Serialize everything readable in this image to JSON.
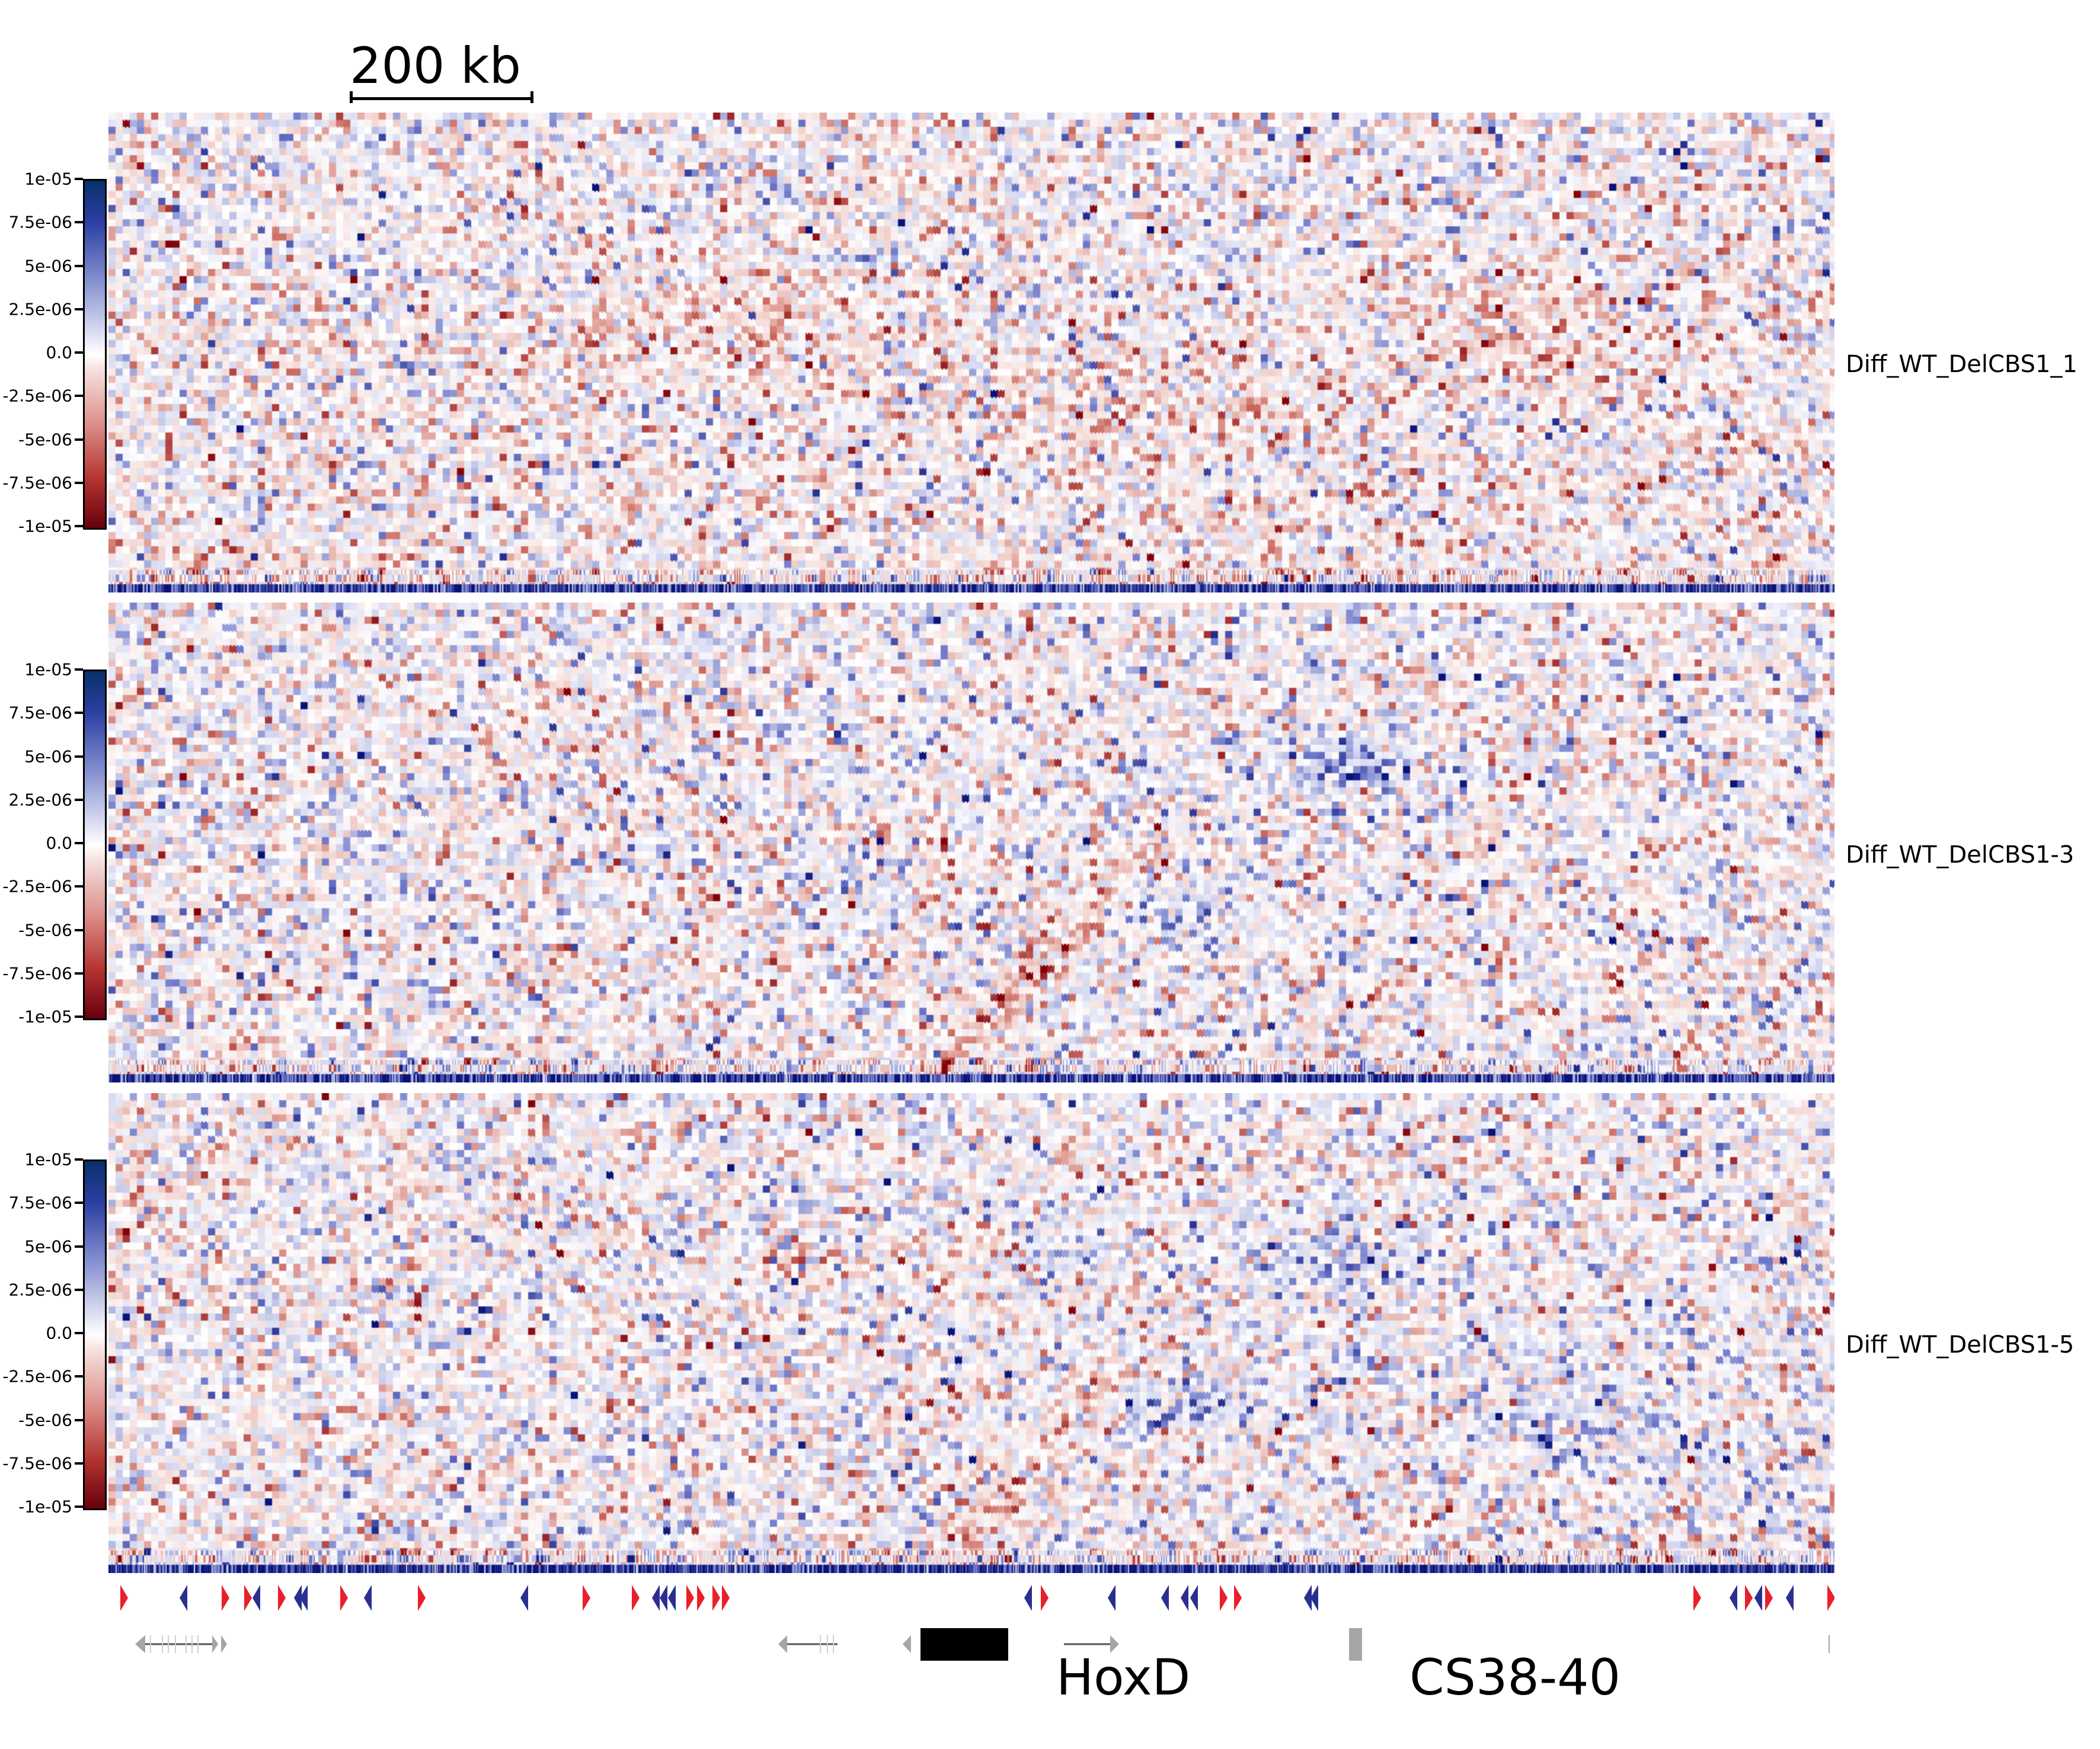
{
  "scalebar": {
    "label": "200 kb"
  },
  "colorbar": {
    "tick_labels": [
      "1e-05",
      "7.5e-06",
      "5e-06",
      "2.5e-06",
      "0.0",
      "-2.5e-06",
      "-5e-06",
      "-7.5e-06",
      "-1e-05"
    ],
    "vmin": -1e-05,
    "vmax": 1e-05,
    "cmap": "seismic_r-like (red negative, white zero, blue positive)"
  },
  "colors": {
    "positive": "#08306b",
    "negative": "#67000d",
    "zero": "#ffffff",
    "ctcf_forward": "#e8202a",
    "ctcf_reverse": "#2a2f8f",
    "gene": "#a6a6a6",
    "hoxd_block": "#000000"
  },
  "chart_data": [
    {
      "type": "heatmap",
      "track_label": "Diff_WT_DelCBS1_1",
      "colorbar_range": [
        -1e-05,
        1e-05
      ]
    },
    {
      "type": "heatmap",
      "track_label": "Diff_WT_DelCBS1-3",
      "colorbar_range": [
        -1e-05,
        1e-05
      ]
    },
    {
      "type": "heatmap",
      "track_label": "Diff_WT_DelCBS1-5",
      "colorbar_range": [
        -1e-05,
        1e-05
      ]
    }
  ],
  "annotations": {
    "hoxd": "HoxD",
    "cs": "CS38-40"
  }
}
